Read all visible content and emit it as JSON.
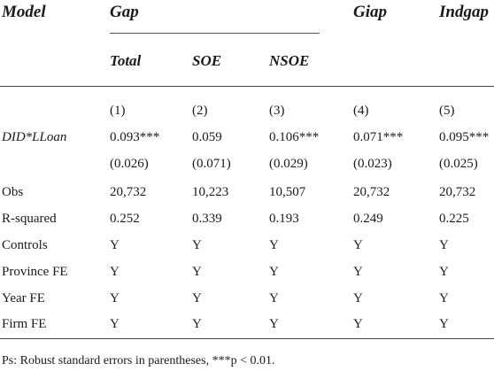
{
  "header": {
    "model": "Model",
    "gap": "Gap",
    "giap": "Giap",
    "indgap": "Indgap",
    "sub": [
      "Total",
      "SOE",
      "NSOE"
    ]
  },
  "columns": [
    "(1)",
    "(2)",
    "(3)",
    "(4)",
    "(5)"
  ],
  "rows": [
    {
      "label": "DID*LLoan",
      "values": [
        "0.093***",
        "0.059",
        "0.106***",
        "0.071***",
        "0.095***"
      ]
    },
    {
      "label": "",
      "values": [
        "(0.026)",
        "(0.071)",
        "(0.029)",
        "(0.023)",
        "(0.025)"
      ]
    },
    {
      "label": "Obs",
      "values": [
        "20,732",
        "10,223",
        "10,507",
        "20,732",
        "20,732"
      ]
    },
    {
      "label": "R-squared",
      "values": [
        "0.252",
        "0.339",
        "0.193",
        "0.249",
        "0.225"
      ]
    },
    {
      "label": "Controls",
      "values": [
        "Y",
        "Y",
        "Y",
        "Y",
        "Y"
      ]
    },
    {
      "label": "Province FE",
      "values": [
        "Y",
        "Y",
        "Y",
        "Y",
        "Y"
      ]
    },
    {
      "label": "Year FE",
      "values": [
        "Y",
        "Y",
        "Y",
        "Y",
        "Y"
      ]
    },
    {
      "label": "Firm FE",
      "values": [
        "Y",
        "Y",
        "Y",
        "Y",
        "Y"
      ]
    }
  ],
  "footnote": "Ps: Robust standard errors in parentheses, ***p < 0.01."
}
